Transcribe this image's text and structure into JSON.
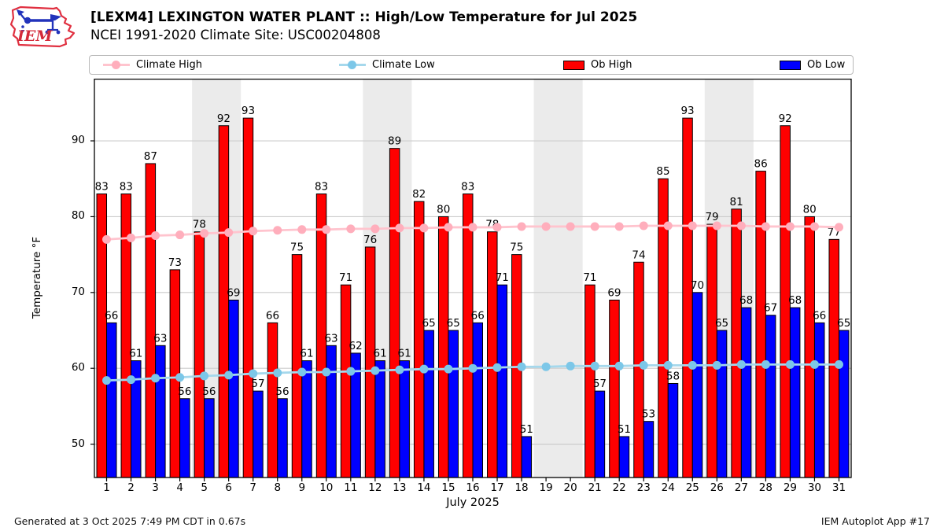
{
  "header": {
    "title": "[LEXM4] LEXINGTON WATER PLANT :: High/Low Temperature for Jul 2025",
    "subtitle": "NCEI 1991-2020 Climate Site: USC00204808",
    "logo_text": "IEM"
  },
  "legend": {
    "items": [
      {
        "label": "Climate High",
        "marker": "line",
        "line_color": "#ffc4ce",
        "dot_color": "#ffaebc"
      },
      {
        "label": "Climate Low",
        "marker": "line",
        "line_color": "#a5d8ec",
        "dot_color": "#7cc7e8"
      },
      {
        "label": "Ob High",
        "marker": "rect",
        "color": "#ff0000"
      },
      {
        "label": "Ob Low",
        "marker": "rect",
        "color": "#0000ff"
      }
    ]
  },
  "chart_data": {
    "type": "bar",
    "title": "[LEXM4] LEXINGTON WATER PLANT :: High/Low Temperature for Jul 2025",
    "subtitle": "NCEI 1991-2020 Climate Site: USC00204808",
    "xlabel": "July 2025",
    "ylabel": "Temperature °F",
    "ylim": [
      45.6,
      98.2
    ],
    "yticks": [
      50,
      60,
      70,
      80,
      90
    ],
    "grid": "horizontal",
    "legend_position": "top",
    "days": [
      1,
      2,
      3,
      4,
      5,
      6,
      7,
      8,
      9,
      10,
      11,
      12,
      13,
      14,
      15,
      16,
      17,
      18,
      19,
      20,
      21,
      22,
      23,
      24,
      25,
      26,
      27,
      28,
      29,
      30,
      31
    ],
    "weekend_bands": [
      [
        5,
        6
      ],
      [
        12,
        13
      ],
      [
        19,
        20
      ],
      [
        26,
        27
      ]
    ],
    "band_color": "#ebebeb",
    "grid_color": "#cccccc",
    "series": [
      {
        "name": "Ob High",
        "type": "bar",
        "color": "#ff0000",
        "values": [
          83,
          83,
          87,
          73,
          78,
          92,
          93,
          66,
          75,
          83,
          71,
          76,
          89,
          82,
          80,
          83,
          78,
          75,
          null,
          null,
          71,
          69,
          74,
          85,
          93,
          79,
          81,
          86,
          92,
          80,
          77
        ]
      },
      {
        "name": "Ob Low",
        "type": "bar",
        "color": "#0000ff",
        "values": [
          66,
          61,
          63,
          56,
          56,
          69,
          57,
          56,
          61,
          63,
          62,
          61,
          61,
          65,
          65,
          66,
          71,
          51,
          null,
          null,
          57,
          51,
          53,
          58,
          70,
          65,
          68,
          67,
          68,
          66,
          65
        ]
      },
      {
        "name": "Climate High",
        "type": "line",
        "color": "#ffc4ce",
        "marker_color": "#ffaebc",
        "values": [
          77.0,
          77.2,
          77.5,
          77.6,
          77.8,
          77.9,
          78.1,
          78.2,
          78.3,
          78.3,
          78.4,
          78.4,
          78.5,
          78.5,
          78.6,
          78.6,
          78.6,
          78.7,
          78.7,
          78.7,
          78.7,
          78.7,
          78.8,
          78.8,
          78.8,
          78.8,
          78.8,
          78.7,
          78.7,
          78.7,
          78.6
        ]
      },
      {
        "name": "Climate Low",
        "type": "line",
        "color": "#a5d8ec",
        "marker_color": "#7cc7e8",
        "values": [
          58.4,
          58.5,
          58.7,
          58.8,
          59.0,
          59.1,
          59.3,
          59.4,
          59.5,
          59.5,
          59.6,
          59.7,
          59.8,
          59.9,
          59.9,
          60.0,
          60.1,
          60.2,
          60.2,
          60.3,
          60.3,
          60.3,
          60.4,
          60.4,
          60.4,
          60.4,
          60.5,
          60.5,
          60.5,
          60.5,
          60.5
        ]
      }
    ]
  },
  "footer": {
    "generated": "Generated at 3 Oct 2025 7:49 PM CDT in 0.67s",
    "app": "IEM Autoplot App #17"
  }
}
